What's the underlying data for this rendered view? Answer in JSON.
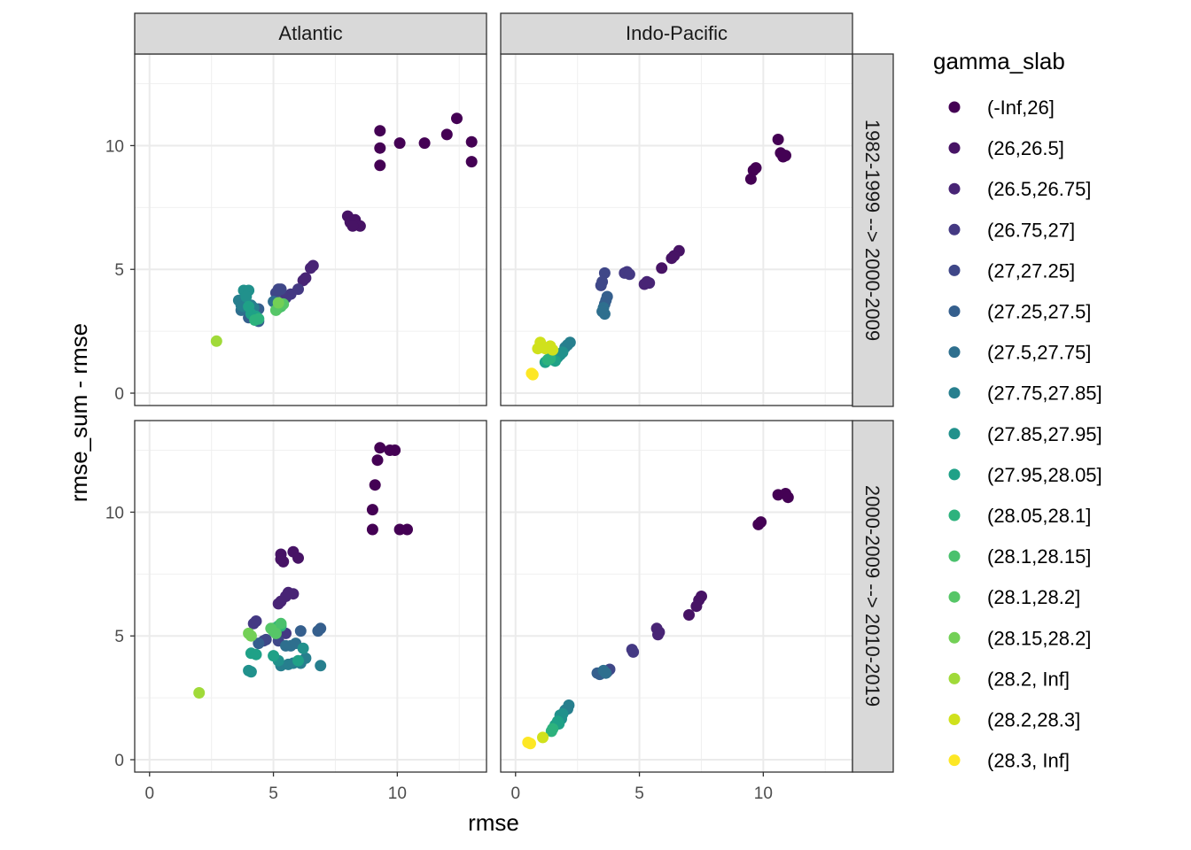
{
  "chart_data": {
    "type": "scatter",
    "xlabel": "rmse",
    "ylabel": "rmse_sum - rmse",
    "xlim": [
      -0.6,
      13.6
    ],
    "ylim": [
      -0.5,
      13.7
    ],
    "x_ticks": [
      0,
      5,
      10
    ],
    "y_ticks": [
      0,
      5,
      10
    ],
    "grid": true,
    "legend_title": "gamma_slab",
    "legend_position": "right",
    "facet_cols": [
      "Atlantic",
      "Indo-Pacific"
    ],
    "facet_rows": [
      "1982-1999 --> 2000-2009",
      "2000-2009 --> 2010-2019"
    ],
    "levels": [
      "(-Inf,26]",
      "(26,26.5]",
      "(26.5,26.75]",
      "(26.75,27]",
      "(27,27.25]",
      "(27.25,27.5]",
      "(27.5,27.75]",
      "(27.75,27.85]",
      "(27.85,27.95]",
      "(27.95,28.05]",
      "(28.05,28.1]",
      "(28.1,28.15]",
      "(28.1,28.2]",
      "(28.15,28.2]",
      "(28.2, Inf]",
      "(28.2,28.3]",
      "(28.3, Inf]"
    ],
    "colors": [
      "#440154",
      "#471365",
      "#482475",
      "#443983",
      "#3f4788",
      "#355f8d",
      "#2e6f8e",
      "#277f8e",
      "#21918c",
      "#1fa187",
      "#2db27d",
      "#4ac16d",
      "#56c667",
      "#73d056",
      "#a0da39",
      "#d0e11c",
      "#fde725"
    ],
    "panels": [
      {
        "col": 0,
        "row": 0,
        "points": [
          [
            9.3,
            10.6,
            0
          ],
          [
            9.3,
            9.9,
            0
          ],
          [
            9.3,
            9.2,
            0
          ],
          [
            10.1,
            10.1,
            0
          ],
          [
            11.1,
            10.1,
            0
          ],
          [
            12.0,
            10.45,
            0
          ],
          [
            12.4,
            11.1,
            0
          ],
          [
            13.0,
            10.15,
            0
          ],
          [
            13.0,
            9.35,
            0
          ],
          [
            8.0,
            7.15,
            1
          ],
          [
            8.1,
            6.9,
            1
          ],
          [
            8.3,
            7.0,
            1
          ],
          [
            8.5,
            6.75,
            1
          ],
          [
            8.2,
            6.75,
            1
          ],
          [
            6.6,
            5.15,
            2
          ],
          [
            6.5,
            5.05,
            2
          ],
          [
            6.3,
            4.65,
            2
          ],
          [
            6.2,
            4.55,
            2
          ],
          [
            6.0,
            4.2,
            3
          ],
          [
            5.7,
            4.0,
            3
          ],
          [
            5.5,
            3.85,
            3
          ],
          [
            5.2,
            4.2,
            4
          ],
          [
            5.1,
            4.05,
            4
          ],
          [
            5.3,
            4.2,
            4
          ],
          [
            4.4,
            3.4,
            5
          ],
          [
            4.2,
            3.2,
            5
          ],
          [
            4.0,
            3.05,
            5
          ],
          [
            4.4,
            2.9,
            5
          ],
          [
            3.9,
            3.4,
            6
          ],
          [
            3.7,
            3.35,
            6
          ],
          [
            5.0,
            3.7,
            6
          ],
          [
            3.6,
            3.75,
            7
          ],
          [
            3.7,
            3.55,
            7
          ],
          [
            3.8,
            3.5,
            7
          ],
          [
            4.1,
            3.55,
            7
          ],
          [
            4.2,
            3.45,
            7
          ],
          [
            3.8,
            4.15,
            8
          ],
          [
            4.0,
            4.15,
            8
          ],
          [
            3.9,
            3.9,
            8
          ],
          [
            4.1,
            3.2,
            9
          ],
          [
            4.3,
            3.1,
            9
          ],
          [
            4.0,
            3.5,
            9
          ],
          [
            4.25,
            2.95,
            10
          ],
          [
            4.4,
            3.0,
            10
          ],
          [
            5.2,
            3.45,
            11
          ],
          [
            5.3,
            3.5,
            11
          ],
          [
            5.1,
            3.35,
            12
          ],
          [
            5.4,
            3.6,
            12
          ],
          [
            5.2,
            3.65,
            13
          ],
          [
            2.7,
            2.1,
            14
          ]
        ]
      },
      {
        "col": 1,
        "row": 0,
        "points": [
          [
            10.6,
            10.25,
            0
          ],
          [
            10.7,
            9.7,
            0
          ],
          [
            10.9,
            9.6,
            0
          ],
          [
            10.8,
            9.55,
            0
          ],
          [
            9.6,
            9.0,
            0
          ],
          [
            9.7,
            9.1,
            0
          ],
          [
            9.5,
            8.65,
            0
          ],
          [
            6.6,
            5.75,
            1
          ],
          [
            6.4,
            5.55,
            1
          ],
          [
            6.3,
            5.45,
            1
          ],
          [
            5.9,
            5.05,
            1
          ],
          [
            5.4,
            4.45,
            2
          ],
          [
            5.2,
            4.4,
            2
          ],
          [
            5.3,
            4.5,
            2
          ],
          [
            4.5,
            4.9,
            3
          ],
          [
            4.4,
            4.85,
            3
          ],
          [
            4.6,
            4.8,
            3
          ],
          [
            3.6,
            4.85,
            4
          ],
          [
            3.5,
            4.5,
            4
          ],
          [
            3.45,
            4.35,
            4
          ],
          [
            3.7,
            3.9,
            5
          ],
          [
            3.65,
            3.75,
            5
          ],
          [
            3.6,
            3.6,
            5
          ],
          [
            3.55,
            3.45,
            6
          ],
          [
            3.5,
            3.3,
            6
          ],
          [
            3.6,
            3.2,
            6
          ],
          [
            2.2,
            2.05,
            7
          ],
          [
            2.1,
            1.95,
            7
          ],
          [
            2.0,
            1.85,
            7
          ],
          [
            1.8,
            1.55,
            8
          ],
          [
            1.7,
            1.45,
            8
          ],
          [
            1.9,
            1.65,
            8
          ],
          [
            1.5,
            1.35,
            9
          ],
          [
            1.6,
            1.3,
            9
          ],
          [
            1.2,
            1.25,
            9
          ],
          [
            1.3,
            1.35,
            10
          ],
          [
            1.4,
            1.4,
            10
          ],
          [
            1.4,
            1.9,
            15
          ],
          [
            1.0,
            2.05,
            15
          ],
          [
            1.2,
            1.8,
            15
          ],
          [
            1.5,
            1.75,
            15
          ],
          [
            0.9,
            1.8,
            15
          ],
          [
            0.65,
            0.8,
            16
          ],
          [
            0.7,
            0.75,
            16
          ]
        ]
      },
      {
        "col": 0,
        "row": 1,
        "points": [
          [
            9.3,
            12.6,
            0
          ],
          [
            9.7,
            12.5,
            0
          ],
          [
            9.9,
            12.5,
            0
          ],
          [
            9.2,
            12.1,
            0
          ],
          [
            9.1,
            11.1,
            0
          ],
          [
            9.0,
            10.1,
            0
          ],
          [
            9.0,
            9.3,
            0
          ],
          [
            10.1,
            9.3,
            0
          ],
          [
            10.4,
            9.3,
            0
          ],
          [
            5.3,
            8.3,
            1
          ],
          [
            5.8,
            8.4,
            1
          ],
          [
            6.0,
            8.15,
            1
          ],
          [
            5.4,
            8.0,
            1
          ],
          [
            5.3,
            8.1,
            1
          ],
          [
            5.6,
            6.75,
            2
          ],
          [
            5.8,
            6.7,
            2
          ],
          [
            5.5,
            6.6,
            2
          ],
          [
            5.2,
            6.3,
            2
          ],
          [
            5.3,
            6.4,
            2
          ],
          [
            4.3,
            5.6,
            3
          ],
          [
            4.2,
            5.5,
            3
          ],
          [
            5.5,
            5.1,
            3
          ],
          [
            4.7,
            4.85,
            4
          ],
          [
            4.6,
            4.8,
            4
          ],
          [
            5.2,
            4.8,
            4
          ],
          [
            6.1,
            5.2,
            5
          ],
          [
            6.8,
            5.2,
            5
          ],
          [
            6.9,
            5.3,
            5
          ],
          [
            4.4,
            4.7,
            5
          ],
          [
            5.5,
            4.6,
            6
          ],
          [
            5.7,
            4.6,
            6
          ],
          [
            5.9,
            4.7,
            6
          ],
          [
            5.3,
            3.8,
            7
          ],
          [
            5.6,
            3.85,
            7
          ],
          [
            6.1,
            3.9,
            7
          ],
          [
            6.3,
            4.1,
            7
          ],
          [
            6.9,
            3.8,
            7
          ],
          [
            5.8,
            3.9,
            7
          ],
          [
            4.0,
            3.6,
            8
          ],
          [
            4.1,
            3.55,
            8
          ],
          [
            5.2,
            4.0,
            8
          ],
          [
            6.2,
            4.5,
            8
          ],
          [
            4.1,
            4.3,
            9
          ],
          [
            4.3,
            4.25,
            9
          ],
          [
            5.0,
            4.2,
            9
          ],
          [
            6.0,
            4.0,
            9
          ],
          [
            5.0,
            5.3,
            10
          ],
          [
            5.2,
            5.4,
            10
          ],
          [
            5.3,
            5.4,
            10
          ],
          [
            5.0,
            5.2,
            11
          ],
          [
            5.3,
            5.5,
            11
          ],
          [
            4.9,
            5.3,
            12
          ],
          [
            5.1,
            5.1,
            12
          ],
          [
            4.0,
            5.1,
            13
          ],
          [
            4.1,
            5.0,
            13
          ],
          [
            2.0,
            2.7,
            14
          ]
        ]
      },
      {
        "col": 1,
        "row": 1,
        "points": [
          [
            10.6,
            10.7,
            0
          ],
          [
            10.9,
            10.75,
            0
          ],
          [
            11.0,
            10.6,
            0
          ],
          [
            9.9,
            9.6,
            0
          ],
          [
            9.8,
            9.5,
            0
          ],
          [
            7.5,
            6.6,
            1
          ],
          [
            7.4,
            6.45,
            1
          ],
          [
            7.3,
            6.2,
            1
          ],
          [
            7.0,
            5.85,
            1
          ],
          [
            5.7,
            5.3,
            2
          ],
          [
            5.8,
            5.15,
            2
          ],
          [
            5.75,
            5.05,
            2
          ],
          [
            4.7,
            4.45,
            3
          ],
          [
            4.75,
            4.35,
            3
          ],
          [
            3.8,
            3.65,
            4
          ],
          [
            3.6,
            3.55,
            4
          ],
          [
            3.7,
            3.55,
            4
          ],
          [
            3.5,
            3.5,
            5
          ],
          [
            3.4,
            3.45,
            5
          ],
          [
            3.3,
            3.5,
            5
          ],
          [
            3.55,
            3.6,
            6
          ],
          [
            3.65,
            3.5,
            6
          ],
          [
            2.15,
            2.2,
            7
          ],
          [
            2.1,
            2.05,
            7
          ],
          [
            2.0,
            2.0,
            7
          ],
          [
            1.9,
            1.85,
            8
          ],
          [
            1.8,
            1.8,
            8
          ],
          [
            1.85,
            1.65,
            8
          ],
          [
            1.7,
            1.55,
            9
          ],
          [
            1.75,
            1.45,
            9
          ],
          [
            1.6,
            1.4,
            9
          ],
          [
            1.5,
            1.25,
            10
          ],
          [
            1.45,
            1.15,
            10
          ],
          [
            1.1,
            0.9,
            15
          ],
          [
            0.5,
            0.7,
            16
          ],
          [
            0.6,
            0.65,
            16
          ]
        ]
      }
    ]
  }
}
